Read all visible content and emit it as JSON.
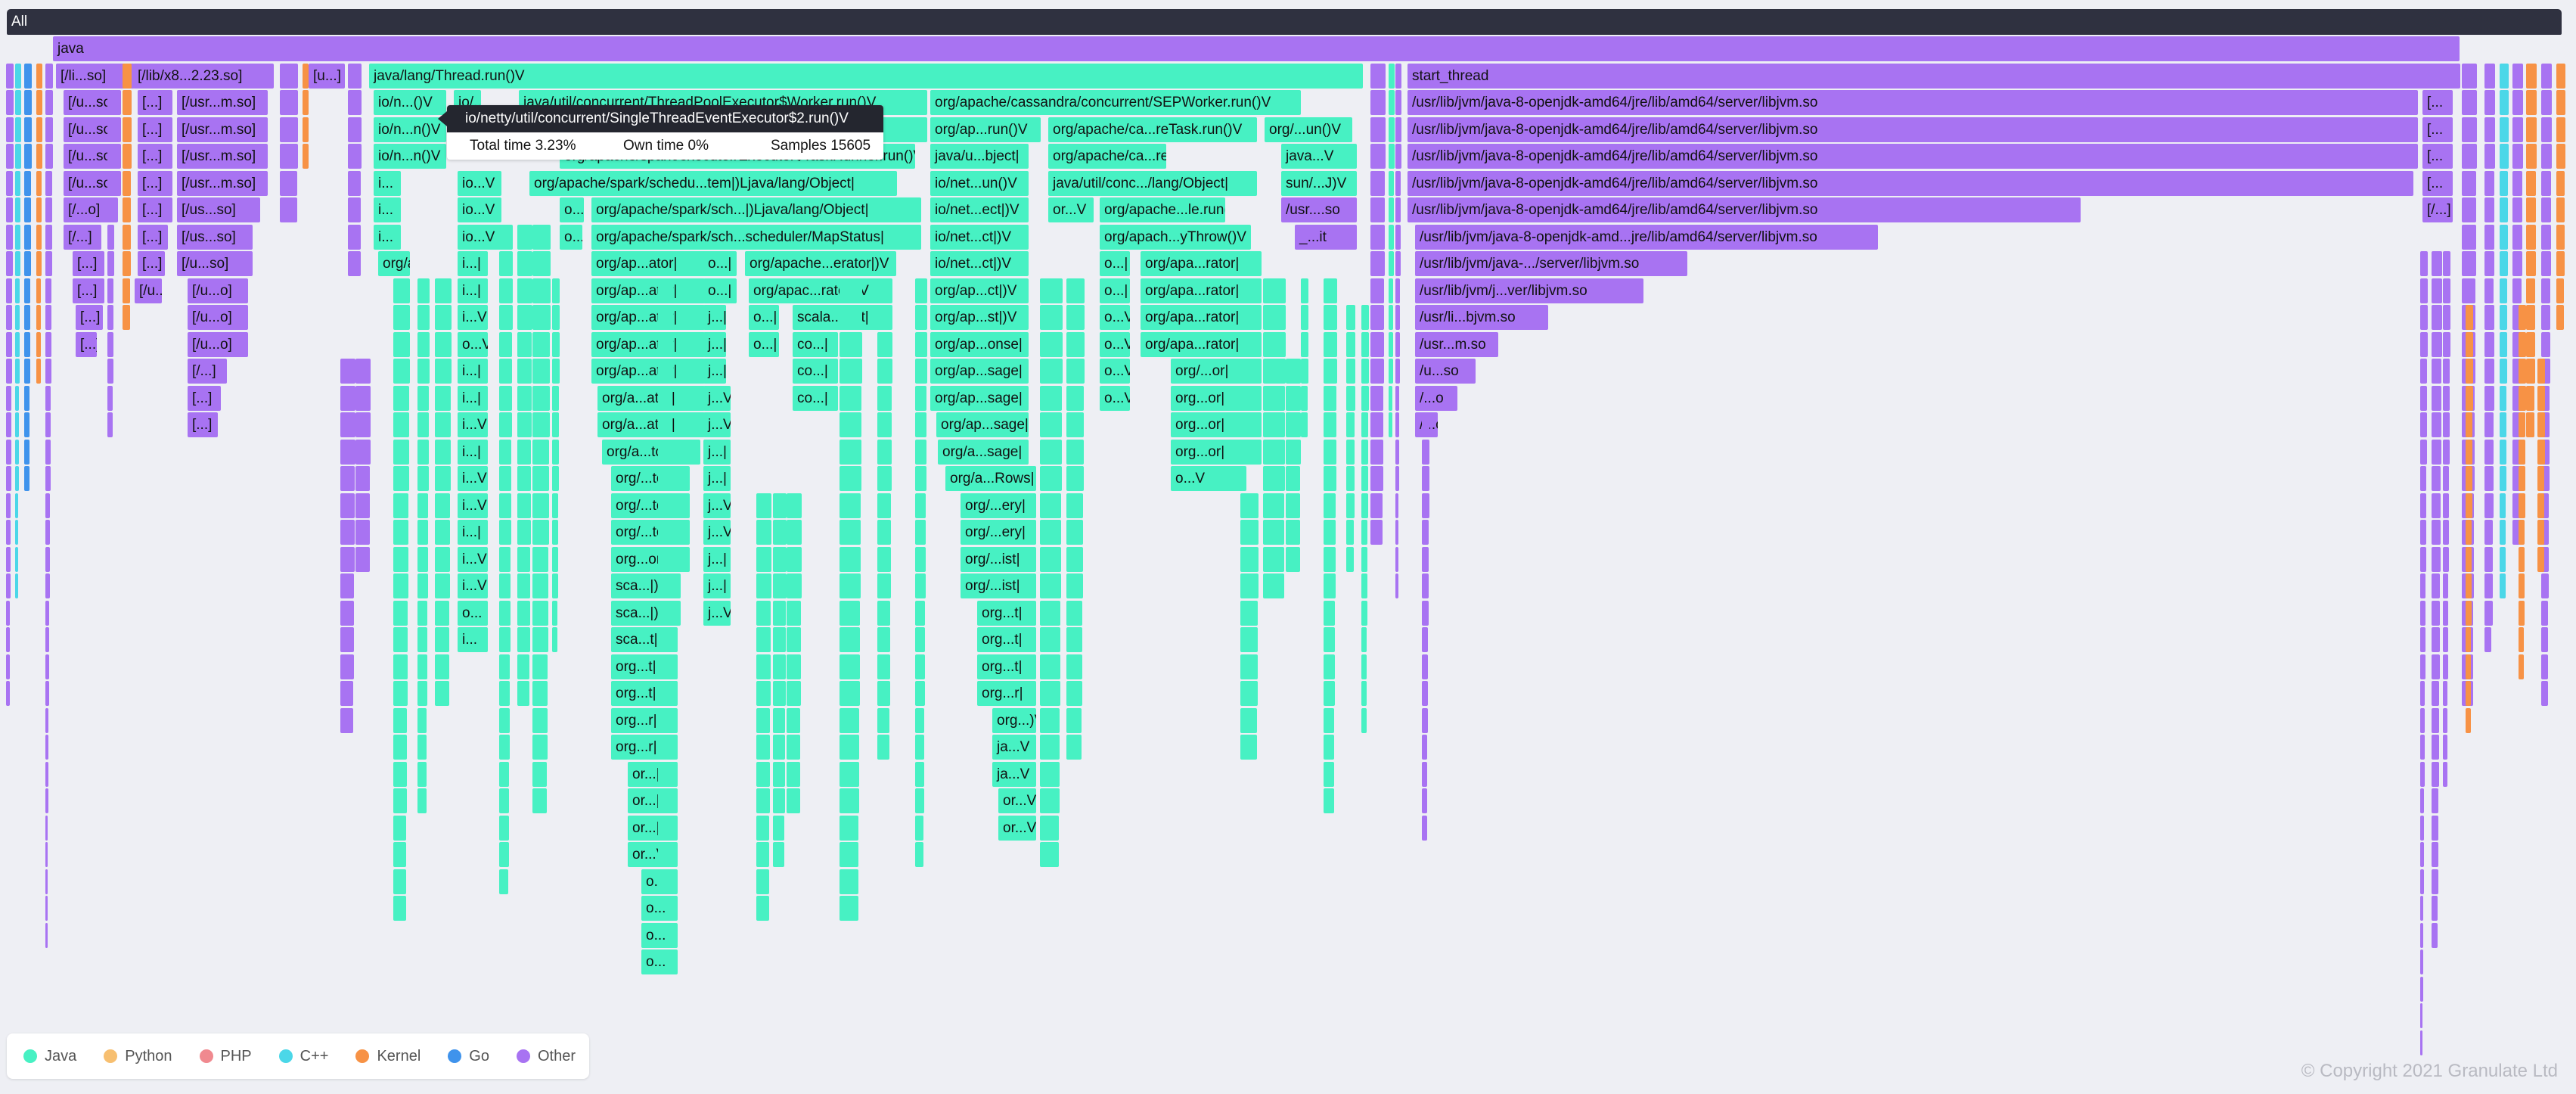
{
  "colors": {
    "Java": "#47f1c3",
    "Python": "#f7bf70",
    "PHP": "#f0898f",
    "C++": "#4bd7e8",
    "Kernel": "#f79245",
    "Go": "#3f93ec",
    "Other": "#a873f2"
  },
  "flamegraph": {
    "root_label": "All",
    "frames": [
      {
        "label": "java",
        "kind": "other"
      },
      {
        "label": "[/li...so]",
        "kind": "other"
      },
      {
        "label": "[/lib/x8...2.23.so]",
        "kind": "other"
      },
      {
        "label": "[u...]",
        "kind": "other"
      },
      {
        "label": "java/lang/Thread.run()V",
        "kind": "java"
      },
      {
        "label": "start_thread",
        "kind": "other"
      },
      {
        "label": "[/u...so]",
        "kind": "other"
      },
      {
        "label": "[...]",
        "kind": "other"
      },
      {
        "label": "[/usr...m.so]",
        "kind": "other"
      },
      {
        "label": "io/n...()V",
        "kind": "java"
      },
      {
        "label": "io/...V",
        "kind": "java"
      },
      {
        "label": "java/util/concurrent/ThreadPoolExecutor$Worker.run()V",
        "kind": "java"
      },
      {
        "label": "org/apache/cassandra/concurrent/SEPWorker.run()V",
        "kind": "java"
      },
      {
        "label": "/usr/lib/jvm/java-8-openjdk-amd64/jre/lib/amd64/server/libjvm.so",
        "kind": "other"
      },
      {
        "label": "[...",
        "kind": "other"
      },
      {
        "label": "io/n...n()V",
        "kind": "java"
      },
      {
        "label": "...ker)V",
        "kind": "java"
      },
      {
        "label": "org/ap...run()V",
        "kind": "java"
      },
      {
        "label": "org/apache/ca...reTask.run()V",
        "kind": "java"
      },
      {
        "label": "org/...un()V",
        "kind": "java"
      },
      {
        "label": "org/apache/spark/executor/Executor$TaskRunner.run()V",
        "kind": "java"
      },
      {
        "label": "java/u...bject|",
        "kind": "java"
      },
      {
        "label": "java...V",
        "kind": "java"
      },
      {
        "label": "i...",
        "kind": "java"
      },
      {
        "label": "io...V",
        "kind": "java"
      },
      {
        "label": "java/util/conc.../lang/Object|",
        "kind": "java"
      },
      {
        "label": "io/net...un()V",
        "kind": "java"
      },
      {
        "label": "sun/...J)V",
        "kind": "java"
      },
      {
        "label": "[/...o]",
        "kind": "other"
      },
      {
        "label": "[...]",
        "kind": "other"
      },
      {
        "label": "[/us...so]",
        "kind": "other"
      },
      {
        "label": "o...",
        "kind": "java"
      },
      {
        "label": "org/apache/spark/sch...|)Ljava/lang/Object|",
        "kind": "java"
      },
      {
        "label": "io/net...ect|)V",
        "kind": "java"
      },
      {
        "label": "or...V",
        "kind": "java"
      },
      {
        "label": "org/apache...le.run()V",
        "kind": "java"
      },
      {
        "label": "/usr....so",
        "kind": "other"
      },
      {
        "label": "[/...]",
        "kind": "other"
      },
      {
        "label": "org/apache/spark/sch...scheduler/MapStatus|",
        "kind": "java"
      },
      {
        "label": "io/net...ct|)V",
        "kind": "java"
      },
      {
        "label": "org/apach...yThrow()V",
        "kind": "java"
      },
      {
        "label": "_...it",
        "kind": "other"
      },
      {
        "label": "/usr/lib/jvm/java-8-openjdk-amd...jre/lib/amd64/server/libjvm.so",
        "kind": "other"
      },
      {
        "label": "i...|",
        "kind": "java"
      },
      {
        "label": "org/ap...ator|",
        "kind": "java"
      },
      {
        "label": "o...|",
        "kind": "java"
      },
      {
        "label": "org/apache...erator|)V",
        "kind": "java"
      },
      {
        "label": "org/apa...rator|",
        "kind": "java"
      },
      {
        "label": "/usr/lib/jvm/java-.../server/libjvm.so",
        "kind": "other"
      },
      {
        "label": "[/u...o]",
        "kind": "other"
      },
      {
        "label": "org/apac...rator|)V",
        "kind": "java"
      },
      {
        "label": "org/ap...ct|)V",
        "kind": "java"
      },
      {
        "label": "/usr/lib/jvm/j...ver/libjvm.so",
        "kind": "other"
      },
      {
        "label": "i...V",
        "kind": "java"
      },
      {
        "label": "j...|",
        "kind": "java"
      },
      {
        "label": "scala...ject|",
        "kind": "java"
      },
      {
        "label": "org/ap...st|)V",
        "kind": "java"
      },
      {
        "label": "o...V",
        "kind": "java"
      },
      {
        "label": "/usr/li...bjvm.so",
        "kind": "other"
      },
      {
        "label": "co...|",
        "kind": "java"
      },
      {
        "label": "org/ap...onse|",
        "kind": "java"
      },
      {
        "label": "/usr...m.so",
        "kind": "other"
      },
      {
        "label": "[/...]",
        "kind": "other"
      },
      {
        "label": "org/ap...sage|",
        "kind": "java"
      },
      {
        "label": "org/...or|",
        "kind": "java"
      },
      {
        "label": "/u...so",
        "kind": "other"
      },
      {
        "label": "org/a...ator|",
        "kind": "java"
      },
      {
        "label": "j...V",
        "kind": "java"
      },
      {
        "label": "org...or|",
        "kind": "java"
      },
      {
        "label": "/...o",
        "kind": "other"
      },
      {
        "label": "org/a...tor|",
        "kind": "java"
      },
      {
        "label": "org/a...sage|",
        "kind": "java"
      },
      {
        "label": "org/...tor|",
        "kind": "java"
      },
      {
        "label": "org/a...Rows|",
        "kind": "java"
      },
      {
        "label": "o...V",
        "kind": "java"
      },
      {
        "label": "org/...ery|",
        "kind": "java"
      },
      {
        "label": "org...or|",
        "kind": "java"
      },
      {
        "label": "org/...ist|",
        "kind": "java"
      },
      {
        "label": "sca...|)V",
        "kind": "java"
      },
      {
        "label": "org...t|",
        "kind": "java"
      },
      {
        "label": "sca...t|",
        "kind": "java"
      },
      {
        "label": "org...r|",
        "kind": "java"
      },
      {
        "label": "org...)V",
        "kind": "java"
      },
      {
        "label": "or...|",
        "kind": "java"
      },
      {
        "label": "ja...V",
        "kind": "java"
      },
      {
        "label": "or...V",
        "kind": "java"
      },
      {
        "label": "o...",
        "kind": "java"
      },
      {
        "label": "i...",
        "kind": "java"
      },
      {
        "label": "org/apache/spark/schedu...tem|)Ljava/lang/Object|",
        "kind": "java"
      },
      {
        "label": "[/u...so]",
        "kind": "other"
      }
    ]
  },
  "tooltip": {
    "title": "io/netty/util/concurrent/SingleThreadEventExecutor$2.run()V",
    "total_time": "Total time 3.23%",
    "own_time": "Own time 0%",
    "samples": "Samples 15605"
  },
  "legend": [
    {
      "label": "Java",
      "color": "#47f1c3"
    },
    {
      "label": "Python",
      "color": "#f7bf70"
    },
    {
      "label": "PHP",
      "color": "#f0898f"
    },
    {
      "label": "C++",
      "color": "#4bd7e8"
    },
    {
      "label": "Kernel",
      "color": "#f79245"
    },
    {
      "label": "Go",
      "color": "#3f93ec"
    },
    {
      "label": "Other",
      "color": "#a873f2"
    }
  ],
  "copyright": "© Copyright 2021 Granulate Ltd"
}
